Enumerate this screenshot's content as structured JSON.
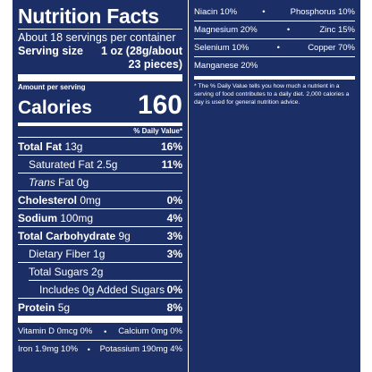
{
  "label": {
    "title": "Nutrition Facts",
    "servings_per_container": "About 18 servings per container",
    "serving_size_label": "Serving size",
    "serving_size_value_line1": "1 oz (28g/about",
    "serving_size_value_line2": "23 pieces)",
    "amount_per_serving": "Amount per serving",
    "calories_label": "Calories",
    "calories_value": "160",
    "daily_value_header": "% Daily Value*",
    "nutrients": [
      {
        "name": "Total Fat",
        "amount": "13g",
        "dv": "16%"
      },
      {
        "name": "Saturated Fat",
        "amount": "2.5g",
        "dv": "11%"
      },
      {
        "name": "Trans",
        "name_suffix": "Fat",
        "amount": "0g",
        "dv": ""
      },
      {
        "name": "Cholesterol",
        "amount": "0mg",
        "dv": "0%"
      },
      {
        "name": "Sodium",
        "amount": "100mg",
        "dv": "4%"
      },
      {
        "name": "Total Carbohydrate",
        "amount": "9g",
        "dv": "3%"
      },
      {
        "name": "Dietary Fiber",
        "amount": "1g",
        "dv": "3%"
      },
      {
        "name": "Total Sugars",
        "amount": "2g",
        "dv": ""
      },
      {
        "name": "Includes 0g Added Sugars",
        "amount": "",
        "dv": "0%"
      },
      {
        "name": "Protein",
        "amount": "5g",
        "dv": "8%"
      }
    ],
    "vitamins_left": [
      {
        "text": "Vitamin D 0mcg 0%",
        "text2": "Calcium 0mg 0%"
      },
      {
        "text": "Iron 1.9mg 10%",
        "text2": "Potassium 190mg 4%"
      }
    ],
    "vitamins_right": [
      {
        "text": "Niacin 10%",
        "text2": "Phosphorus 10%"
      },
      {
        "text": "Magnesium 20%",
        "text2": "Zinc 15%"
      },
      {
        "text": "Selenium 10%",
        "text2": "Copper 70%"
      },
      {
        "text": "Manganese 20%",
        "text2": ""
      }
    ],
    "bullet": "•",
    "footnote": "* The % Daily Value tells you how much a nutrient in a serving of food contributes to a daily diet. 2,000 calories a day is used for general nutrition advice.",
    "colors": {
      "background": "#1b2e66",
      "text": "#ffffff"
    }
  }
}
